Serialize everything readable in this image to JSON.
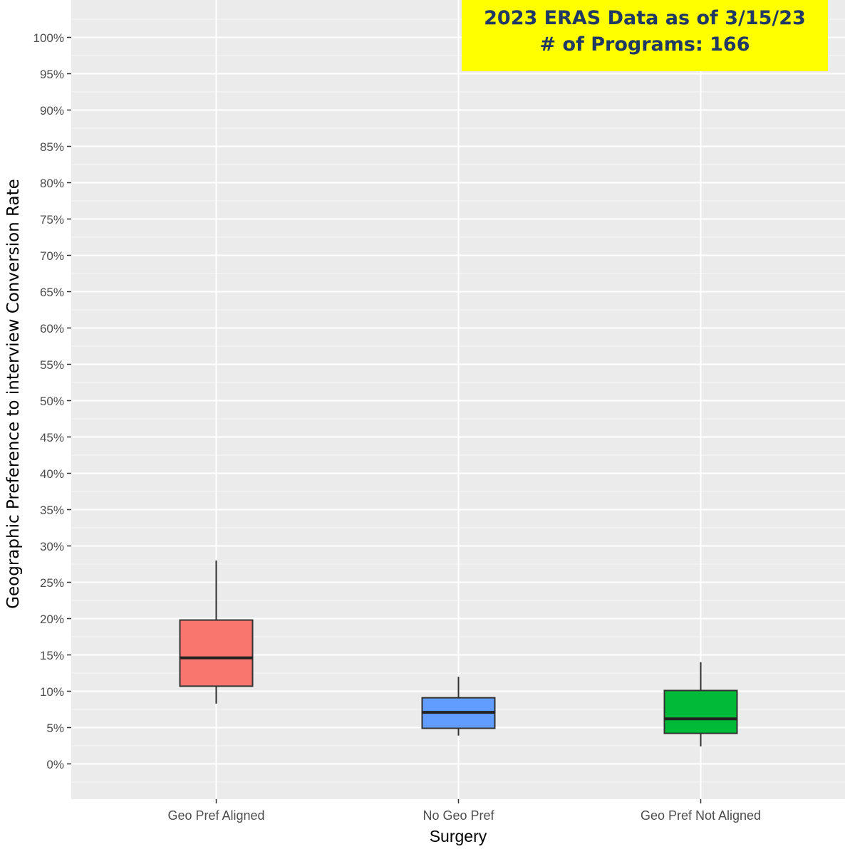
{
  "chart_data": {
    "type": "boxplot",
    "title": "",
    "xlabel": "Surgery",
    "ylabel": "Geographic Preference to interview Conversion Rate",
    "ylim": [
      -5,
      105
    ],
    "yticks": [
      "0%",
      "5%",
      "10%",
      "15%",
      "20%",
      "25%",
      "30%",
      "35%",
      "40%",
      "45%",
      "50%",
      "55%",
      "60%",
      "65%",
      "70%",
      "75%",
      "80%",
      "85%",
      "90%",
      "95%",
      "100%"
    ],
    "ytick_values": [
      0,
      5,
      10,
      15,
      20,
      25,
      30,
      35,
      40,
      45,
      50,
      55,
      60,
      65,
      70,
      75,
      80,
      85,
      90,
      95,
      100
    ],
    "categories": [
      "Geo Pref Aligned",
      "No Geo Pref",
      "Geo Pref Not Aligned"
    ],
    "boxes": [
      {
        "category": "Geo Pref Aligned",
        "whisker_low": 8.3,
        "q1": 10.7,
        "median": 14.6,
        "q3": 19.8,
        "whisker_high": 28.0,
        "color": "#f8766d"
      },
      {
        "category": "No Geo Pref",
        "whisker_low": 3.9,
        "q1": 4.9,
        "median": 7.1,
        "q3": 9.1,
        "whisker_high": 12.0,
        "color": "#619cff"
      },
      {
        "category": "Geo Pref Not Aligned",
        "whisker_low": 2.4,
        "q1": 4.2,
        "median": 6.2,
        "q3": 10.1,
        "whisker_high": 14.0,
        "color": "#00ba38"
      }
    ],
    "grid": true,
    "panel_background": "#ebebeb"
  },
  "annotation": {
    "line1": "2023 ERAS Data as of 3/15/23",
    "line2": "# of Programs: 166",
    "background": "#ffff00",
    "text_color": "#1f3864"
  }
}
